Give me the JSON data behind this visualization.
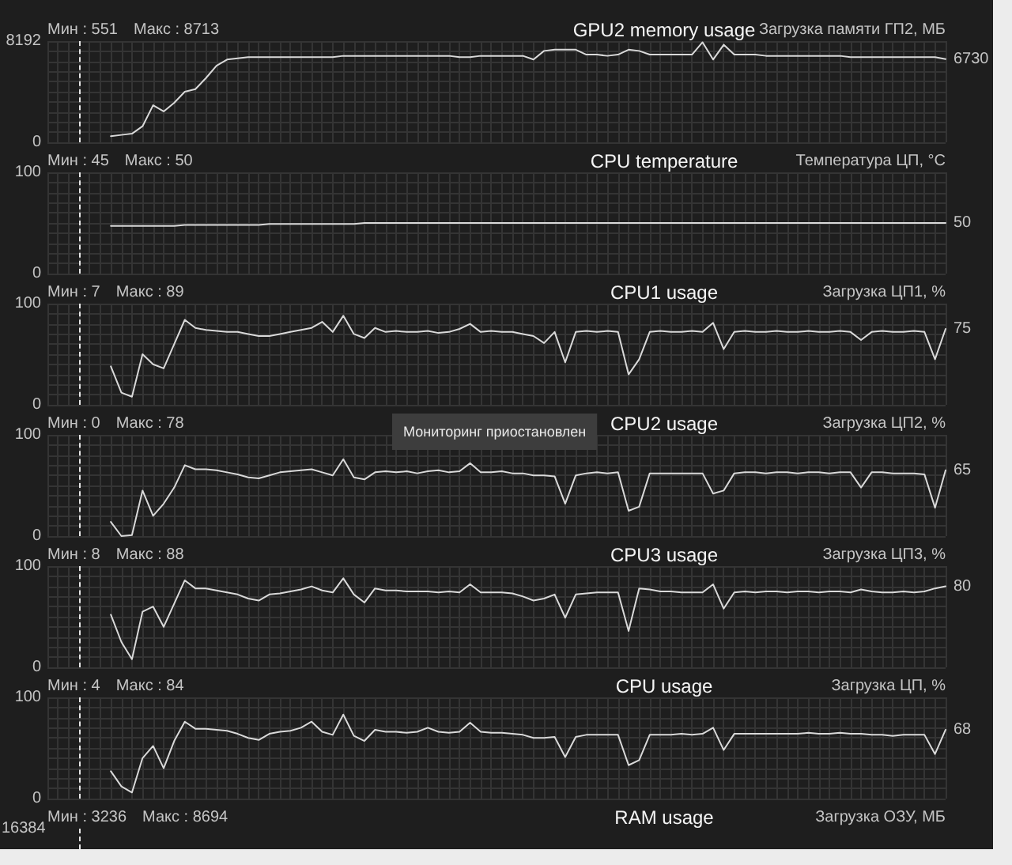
{
  "chart_data": [
    {
      "type": "line",
      "title": "GPU2 memory usage",
      "ylabel": "Загрузка памяти ГП2, МБ",
      "annotations": [
        "Мин : 551",
        "Макс : 8713"
      ],
      "color": "#d9d9d9",
      "grid": true,
      "categories": [
        null,
        null,
        null,
        null,
        null,
        null,
        null,
        null,
        null,
        null,
        null,
        null,
        null,
        null,
        null,
        null,
        null,
        null,
        null,
        null,
        null,
        null,
        null,
        null,
        null,
        null,
        null,
        null,
        null,
        null,
        null,
        null,
        null,
        null,
        null,
        null,
        null,
        null,
        null,
        null,
        null,
        null,
        null,
        null,
        null,
        null,
        null,
        null,
        null,
        null,
        null,
        null,
        null,
        null,
        null,
        null,
        null,
        null,
        null,
        null,
        null,
        null,
        null,
        null,
        null,
        null,
        null,
        null,
        null,
        null,
        null,
        null,
        null,
        null,
        null,
        null,
        null,
        null,
        null,
        null,
        null,
        null,
        null,
        null,
        null,
        null
      ],
      "values": [
        null,
        null,
        null,
        null,
        null,
        null,
        500,
        600,
        700,
        1300,
        3000,
        2500,
        3200,
        4100,
        4300,
        5200,
        6200,
        6700,
        6800,
        6900,
        6900,
        6900,
        6900,
        6900,
        6900,
        6900,
        6900,
        6900,
        7000,
        7000,
        7000,
        7000,
        7000,
        7000,
        7000,
        7000,
        7000,
        7000,
        7000,
        6900,
        6900,
        7000,
        7000,
        7000,
        7000,
        7000,
        6700,
        7400,
        7500,
        7500,
        7500,
        7100,
        7100,
        7000,
        7100,
        7500,
        7400,
        7100,
        7100,
        7100,
        7100,
        7100,
        8100,
        6700,
        7900,
        7100,
        7100,
        7100,
        7000,
        7000,
        7000,
        7000,
        7000,
        7000,
        7000,
        7000,
        6900,
        6900,
        6900,
        6900,
        6900,
        6900,
        6900,
        6900,
        6900,
        6730
      ],
      "value_labels": [
        null,
        null,
        null,
        null,
        null,
        null,
        null,
        null,
        null,
        null,
        null,
        null,
        null,
        null,
        null,
        null,
        null,
        null,
        null,
        null,
        null,
        null,
        null,
        null,
        null,
        null,
        null,
        null,
        null,
        null,
        null,
        null,
        null,
        null,
        null,
        null,
        null,
        null,
        null,
        null,
        null,
        null,
        null,
        null,
        null,
        null,
        null,
        null,
        null,
        null,
        null,
        null,
        null,
        null,
        null,
        null,
        null,
        null,
        null,
        null,
        null,
        null,
        null,
        null,
        null,
        null,
        null,
        null,
        null,
        null,
        null,
        null,
        null,
        null,
        null,
        null,
        null,
        null,
        null,
        null,
        null,
        null,
        null,
        null,
        null,
        "6730"
      ],
      "ylim": [
        0,
        8192
      ],
      "yticks": [
        0,
        {
          "value": 819.2,
          "label": null
        },
        {
          "value": 1638.4,
          "label": null
        },
        {
          "value": 2457.6,
          "label": null
        },
        {
          "value": 3276.8,
          "label": null
        },
        {
          "value": 4096,
          "label": null
        },
        {
          "value": 4915.2,
          "label": null
        },
        {
          "value": 5734.4,
          "label": null
        },
        {
          "value": 6553.6,
          "label": null
        },
        {
          "value": 7372.8,
          "label": null
        },
        8192
      ]
    },
    {
      "type": "line",
      "title": "CPU temperature",
      "ylabel": "Температура ЦП, °C",
      "annotations": [
        "Мин : 45",
        "Макс : 50"
      ],
      "color": "#d9d9d9",
      "grid": true,
      "categories": [
        null,
        null,
        null,
        null,
        null,
        null,
        null,
        null,
        null,
        null,
        null,
        null,
        null,
        null,
        null,
        null,
        null,
        null,
        null,
        null,
        null,
        null,
        null,
        null,
        null,
        null,
        null,
        null,
        null,
        null,
        null,
        null,
        null,
        null,
        null,
        null,
        null,
        null,
        null,
        null,
        null,
        null,
        null,
        null,
        null,
        null,
        null,
        null,
        null,
        null,
        null,
        null,
        null,
        null,
        null,
        null,
        null,
        null,
        null,
        null,
        null,
        null,
        null,
        null,
        null,
        null,
        null,
        null,
        null,
        null,
        null,
        null,
        null,
        null,
        null,
        null,
        null,
        null,
        null,
        null,
        null,
        null,
        null,
        null,
        null,
        null
      ],
      "values": [
        null,
        null,
        null,
        null,
        null,
        null,
        47,
        47,
        47,
        47,
        47,
        47,
        47,
        48,
        48,
        48,
        48,
        48,
        48,
        48,
        48,
        49,
        49,
        49,
        49,
        49,
        49,
        49,
        49,
        49,
        50,
        50,
        50,
        50,
        50,
        50,
        50,
        50,
        50,
        50,
        50,
        50,
        50,
        50,
        50,
        50,
        50,
        50,
        50,
        50,
        50,
        50,
        50,
        50,
        50,
        50,
        50,
        50,
        50,
        50,
        50,
        50,
        50,
        50,
        50,
        50,
        50,
        50,
        50,
        50,
        50,
        50,
        50,
        50,
        50,
        50,
        50,
        50,
        50,
        50,
        50,
        50,
        50,
        50,
        50,
        50
      ],
      "value_labels": [
        null,
        null,
        null,
        null,
        null,
        null,
        null,
        null,
        null,
        null,
        null,
        null,
        null,
        null,
        null,
        null,
        null,
        null,
        null,
        null,
        null,
        null,
        null,
        null,
        null,
        null,
        null,
        null,
        null,
        null,
        null,
        null,
        null,
        null,
        null,
        null,
        null,
        null,
        null,
        null,
        null,
        null,
        null,
        null,
        null,
        null,
        null,
        null,
        null,
        null,
        null,
        null,
        null,
        null,
        null,
        null,
        null,
        null,
        null,
        null,
        null,
        null,
        null,
        null,
        null,
        null,
        null,
        null,
        null,
        null,
        null,
        null,
        null,
        null,
        null,
        null,
        null,
        null,
        null,
        null,
        null,
        null,
        null,
        null,
        null,
        "50"
      ],
      "ylim": [
        0,
        100
      ],
      "yticks": [
        0,
        {
          "value": 10,
          "label": null
        },
        {
          "value": 20,
          "label": null
        },
        {
          "value": 30,
          "label": null
        },
        {
          "value": 40,
          "label": null
        },
        {
          "value": 50,
          "label": null
        },
        {
          "value": 60,
          "label": null
        },
        {
          "value": 70,
          "label": null
        },
        {
          "value": 80,
          "label": null
        },
        {
          "value": 90,
          "label": null
        },
        100
      ]
    },
    {
      "type": "line",
      "title": "CPU1 usage",
      "ylabel": "Загрузка ЦП1, %",
      "annotations": [
        "Мин : 7",
        "Макс : 89"
      ],
      "color": "#d9d9d9",
      "grid": true,
      "categories": [
        null,
        null,
        null,
        null,
        null,
        null,
        null,
        null,
        null,
        null,
        null,
        null,
        null,
        null,
        null,
        null,
        null,
        null,
        null,
        null,
        null,
        null,
        null,
        null,
        null,
        null,
        null,
        null,
        null,
        null,
        null,
        null,
        null,
        null,
        null,
        null,
        null,
        null,
        null,
        null,
        null,
        null,
        null,
        null,
        null,
        null,
        null,
        null,
        null,
        null,
        null,
        null,
        null,
        null,
        null,
        null,
        null,
        null,
        null,
        null,
        null,
        null,
        null,
        null,
        null,
        null,
        null,
        null,
        null,
        null,
        null,
        null,
        null,
        null,
        null,
        null,
        null,
        null,
        null,
        null,
        null,
        null,
        null,
        null,
        null,
        null
      ],
      "values": [
        null,
        null,
        null,
        null,
        null,
        null,
        38,
        12,
        8,
        50,
        40,
        36,
        60,
        84,
        76,
        74,
        73,
        72,
        72,
        70,
        68,
        68,
        70,
        72,
        74,
        76,
        82,
        72,
        88,
        70,
        66,
        76,
        72,
        73,
        72,
        72,
        73,
        71,
        72,
        75,
        80,
        72,
        73,
        72,
        72,
        70,
        68,
        61,
        72,
        42,
        72,
        73,
        72,
        73,
        72,
        30,
        45,
        72,
        73,
        72,
        72,
        73,
        72,
        81,
        55,
        72,
        73,
        72,
        72,
        73,
        72,
        72,
        73,
        72,
        72,
        73,
        72,
        64,
        72,
        73,
        72,
        72,
        73,
        72,
        45,
        75
      ],
      "value_labels": [
        null,
        null,
        null,
        null,
        null,
        null,
        null,
        null,
        null,
        null,
        null,
        null,
        null,
        null,
        null,
        null,
        null,
        null,
        null,
        null,
        null,
        null,
        null,
        null,
        null,
        null,
        null,
        null,
        null,
        null,
        null,
        null,
        null,
        null,
        null,
        null,
        null,
        null,
        null,
        null,
        null,
        null,
        null,
        null,
        null,
        null,
        null,
        null,
        null,
        null,
        null,
        null,
        null,
        null,
        null,
        null,
        null,
        null,
        null,
        null,
        null,
        null,
        null,
        null,
        null,
        null,
        null,
        null,
        null,
        null,
        null,
        null,
        null,
        null,
        null,
        null,
        null,
        null,
        null,
        null,
        null,
        null,
        null,
        null,
        null,
        "75"
      ],
      "ylim": [
        0,
        100
      ],
      "yticks": [
        0,
        {
          "value": 10,
          "label": null
        },
        {
          "value": 20,
          "label": null
        },
        {
          "value": 30,
          "label": null
        },
        {
          "value": 40,
          "label": null
        },
        {
          "value": 50,
          "label": null
        },
        {
          "value": 60,
          "label": null
        },
        {
          "value": 70,
          "label": null
        },
        {
          "value": 80,
          "label": null
        },
        {
          "value": 90,
          "label": null
        },
        100
      ]
    },
    {
      "type": "line",
      "title": "CPU2 usage",
      "ylabel": "Загрузка ЦП2, %",
      "annotations": [
        "Мин : 0",
        "Макс : 78",
        "Мониторинг приостановлен"
      ],
      "color": "#d9d9d9",
      "grid": true,
      "categories": [
        null,
        null,
        null,
        null,
        null,
        null,
        null,
        null,
        null,
        null,
        null,
        null,
        null,
        null,
        null,
        null,
        null,
        null,
        null,
        null,
        null,
        null,
        null,
        null,
        null,
        null,
        null,
        null,
        null,
        null,
        null,
        null,
        null,
        null,
        null,
        null,
        null,
        null,
        null,
        null,
        null,
        null,
        null,
        null,
        null,
        null,
        null,
        null,
        null,
        null,
        null,
        null,
        null,
        null,
        null,
        null,
        null,
        null,
        null,
        null,
        null,
        null,
        null,
        null,
        null,
        null,
        null,
        null,
        null,
        null,
        null,
        null,
        null,
        null,
        null,
        null,
        null,
        null,
        null,
        null,
        null,
        null,
        null,
        null,
        null,
        null
      ],
      "values": [
        null,
        null,
        null,
        null,
        null,
        null,
        14,
        0,
        1,
        45,
        20,
        32,
        48,
        70,
        66,
        66,
        65,
        63,
        61,
        58,
        57,
        60,
        63,
        64,
        65,
        66,
        63,
        60,
        76,
        58,
        56,
        63,
        64,
        63,
        64,
        62,
        64,
        65,
        63,
        64,
        72,
        63,
        63,
        64,
        62,
        62,
        60,
        60,
        59,
        32,
        60,
        62,
        63,
        62,
        63,
        25,
        29,
        62,
        62,
        62,
        62,
        62,
        62,
        42,
        45,
        62,
        63,
        63,
        62,
        63,
        63,
        62,
        63,
        63,
        62,
        63,
        63,
        48,
        63,
        63,
        62,
        62,
        62,
        61,
        28,
        65
      ],
      "value_labels": [
        null,
        null,
        null,
        null,
        null,
        null,
        null,
        null,
        null,
        null,
        null,
        null,
        null,
        null,
        null,
        null,
        null,
        null,
        null,
        null,
        null,
        null,
        null,
        null,
        null,
        null,
        null,
        null,
        null,
        null,
        null,
        null,
        null,
        null,
        null,
        null,
        null,
        null,
        null,
        null,
        null,
        null,
        null,
        null,
        null,
        null,
        null,
        null,
        null,
        null,
        null,
        null,
        null,
        null,
        null,
        null,
        null,
        null,
        null,
        null,
        null,
        null,
        null,
        null,
        null,
        null,
        null,
        null,
        null,
        null,
        null,
        null,
        null,
        null,
        null,
        null,
        null,
        null,
        null,
        null,
        null,
        null,
        null,
        null,
        null,
        "65"
      ],
      "ylim": [
        0,
        100
      ],
      "yticks": [
        0,
        {
          "value": 10,
          "label": null
        },
        {
          "value": 20,
          "label": null
        },
        {
          "value": 30,
          "label": null
        },
        {
          "value": 40,
          "label": null
        },
        {
          "value": 50,
          "label": null
        },
        {
          "value": 60,
          "label": null
        },
        {
          "value": 70,
          "label": null
        },
        {
          "value": 80,
          "label": null
        },
        {
          "value": 90,
          "label": null
        },
        100
      ]
    },
    {
      "type": "line",
      "title": "CPU3 usage",
      "ylabel": "Загрузка ЦП3, %",
      "annotations": [
        "Мин : 8",
        "Макс : 88"
      ],
      "color": "#d9d9d9",
      "grid": true,
      "categories": [
        null,
        null,
        null,
        null,
        null,
        null,
        null,
        null,
        null,
        null,
        null,
        null,
        null,
        null,
        null,
        null,
        null,
        null,
        null,
        null,
        null,
        null,
        null,
        null,
        null,
        null,
        null,
        null,
        null,
        null,
        null,
        null,
        null,
        null,
        null,
        null,
        null,
        null,
        null,
        null,
        null,
        null,
        null,
        null,
        null,
        null,
        null,
        null,
        null,
        null,
        null,
        null,
        null,
        null,
        null,
        null,
        null,
        null,
        null,
        null,
        null,
        null,
        null,
        null,
        null,
        null,
        null,
        null,
        null,
        null,
        null,
        null,
        null,
        null,
        null,
        null,
        null,
        null,
        null,
        null,
        null,
        null,
        null,
        null,
        null,
        null
      ],
      "values": [
        null,
        null,
        null,
        null,
        null,
        null,
        52,
        25,
        8,
        55,
        60,
        40,
        63,
        86,
        78,
        78,
        76,
        74,
        72,
        68,
        66,
        72,
        73,
        75,
        77,
        80,
        76,
        74,
        88,
        72,
        64,
        78,
        76,
        76,
        75,
        75,
        75,
        74,
        75,
        74,
        82,
        74,
        74,
        74,
        73,
        70,
        66,
        68,
        72,
        49,
        72,
        73,
        74,
        74,
        74,
        36,
        78,
        77,
        75,
        75,
        74,
        74,
        74,
        82,
        58,
        74,
        75,
        74,
        75,
        75,
        74,
        75,
        75,
        74,
        75,
        75,
        74,
        77,
        75,
        74,
        74,
        75,
        74,
        75,
        78,
        80
      ],
      "value_labels": [
        null,
        null,
        null,
        null,
        null,
        null,
        null,
        null,
        null,
        null,
        null,
        null,
        null,
        null,
        null,
        null,
        null,
        null,
        null,
        null,
        null,
        null,
        null,
        null,
        null,
        null,
        null,
        null,
        null,
        null,
        null,
        null,
        null,
        null,
        null,
        null,
        null,
        null,
        null,
        null,
        null,
        null,
        null,
        null,
        null,
        null,
        null,
        null,
        null,
        null,
        null,
        null,
        null,
        null,
        null,
        null,
        null,
        null,
        null,
        null,
        null,
        null,
        null,
        null,
        null,
        null,
        null,
        null,
        null,
        null,
        null,
        null,
        null,
        null,
        null,
        null,
        null,
        null,
        null,
        null,
        null,
        null,
        null,
        null,
        null,
        "80"
      ],
      "ylim": [
        0,
        100
      ],
      "yticks": [
        0,
        {
          "value": 10,
          "label": null
        },
        {
          "value": 20,
          "label": null
        },
        {
          "value": 30,
          "label": null
        },
        {
          "value": 40,
          "label": null
        },
        {
          "value": 50,
          "label": null
        },
        {
          "value": 60,
          "label": null
        },
        {
          "value": 70,
          "label": null
        },
        {
          "value": 80,
          "label": null
        },
        {
          "value": 90,
          "label": null
        },
        100
      ]
    },
    {
      "type": "line",
      "title": "CPU usage",
      "ylabel": "Загрузка ЦП, %",
      "annotations": [
        "Мин : 4",
        "Макс : 84"
      ],
      "color": "#d9d9d9",
      "grid": true,
      "categories": [
        null,
        null,
        null,
        null,
        null,
        null,
        null,
        null,
        null,
        null,
        null,
        null,
        null,
        null,
        null,
        null,
        null,
        null,
        null,
        null,
        null,
        null,
        null,
        null,
        null,
        null,
        null,
        null,
        null,
        null,
        null,
        null,
        null,
        null,
        null,
        null,
        null,
        null,
        null,
        null,
        null,
        null,
        null,
        null,
        null,
        null,
        null,
        null,
        null,
        null,
        null,
        null,
        null,
        null,
        null,
        null,
        null,
        null,
        null,
        null,
        null,
        null,
        null,
        null,
        null,
        null,
        null,
        null,
        null,
        null,
        null,
        null,
        null,
        null,
        null,
        null,
        null,
        null,
        null,
        null,
        null,
        null,
        null,
        null,
        null,
        null
      ],
      "values": [
        null,
        null,
        null,
        null,
        null,
        null,
        27,
        12,
        6,
        40,
        52,
        30,
        57,
        76,
        69,
        69,
        68,
        67,
        64,
        60,
        58,
        64,
        66,
        67,
        70,
        76,
        66,
        63,
        83,
        62,
        57,
        68,
        66,
        66,
        65,
        66,
        70,
        66,
        65,
        66,
        75,
        66,
        65,
        65,
        64,
        63,
        60,
        60,
        61,
        41,
        61,
        63,
        63,
        63,
        63,
        33,
        38,
        63,
        63,
        63,
        64,
        63,
        64,
        70,
        48,
        64,
        64,
        64,
        64,
        64,
        64,
        64,
        65,
        64,
        64,
        65,
        64,
        64,
        63,
        63,
        62,
        63,
        63,
        63,
        44,
        68
      ],
      "value_labels": [
        null,
        null,
        null,
        null,
        null,
        null,
        null,
        null,
        null,
        null,
        null,
        null,
        null,
        null,
        null,
        null,
        null,
        null,
        null,
        null,
        null,
        null,
        null,
        null,
        null,
        null,
        null,
        null,
        null,
        null,
        null,
        null,
        null,
        null,
        null,
        null,
        null,
        null,
        null,
        null,
        null,
        null,
        null,
        null,
        null,
        null,
        null,
        null,
        null,
        null,
        null,
        null,
        null,
        null,
        null,
        null,
        null,
        null,
        null,
        null,
        null,
        null,
        null,
        null,
        null,
        null,
        null,
        null,
        null,
        null,
        null,
        null,
        null,
        null,
        null,
        null,
        null,
        null,
        null,
        null,
        null,
        null,
        null,
        null,
        null,
        "68"
      ],
      "ylim": [
        0,
        100
      ],
      "yticks": [
        0,
        {
          "value": 10,
          "label": null
        },
        {
          "value": 20,
          "label": null
        },
        {
          "value": 30,
          "label": null
        },
        {
          "value": 40,
          "label": null
        },
        {
          "value": 50,
          "label": null
        },
        {
          "value": 60,
          "label": null
        },
        {
          "value": 70,
          "label": null
        },
        {
          "value": 80,
          "label": null
        },
        {
          "value": 90,
          "label": null
        },
        100
      ]
    },
    {
      "type": "other",
      "title": "RAM usage",
      "ylabel": "Загрузка ОЗУ, МБ",
      "annotations": [
        "Мин : 3236",
        "Макс : 8694",
        "16384"
      ]
    }
  ]
}
